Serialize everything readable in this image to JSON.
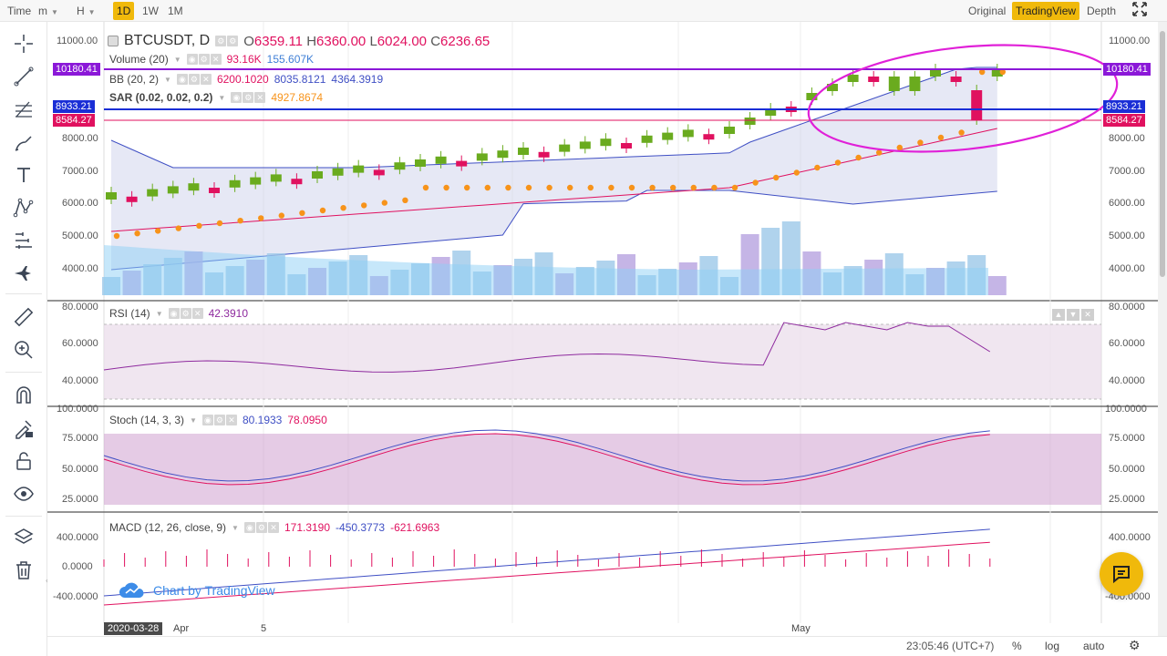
{
  "topbar": {
    "time_label": "Time",
    "interval_m": "m",
    "interval_h": "H",
    "intervals": [
      "1D",
      "1W",
      "1M"
    ],
    "active_interval": "1D",
    "views": [
      "Original",
      "TradingView",
      "Depth"
    ],
    "active_view": "TradingView"
  },
  "symbol": {
    "name": "BTCUSDT, D",
    "open_label": "O",
    "open": "6359.11",
    "high_label": "H",
    "high": "6360.00",
    "low_label": "L",
    "low": "6024.00",
    "close_label": "C",
    "close": "6236.65"
  },
  "indicators": {
    "volume": {
      "name": "Volume (20)",
      "v1": "93.16K",
      "v2": "155.607K"
    },
    "bb": {
      "name": "BB (20, 2)",
      "v1": "6200.1020",
      "v2": "8035.8121",
      "v3": "4364.3919"
    },
    "sar": {
      "name": "SAR (0.02, 0.02, 0.2)",
      "v1": "4927.8674"
    },
    "rsi": {
      "name": "RSI (14)",
      "v1": "42.3910"
    },
    "stoch": {
      "name": "Stoch (14, 3, 3)",
      "v1": "80.1933",
      "v2": "78.0950"
    },
    "macd": {
      "name": "MACD (12, 26, close, 9)",
      "v1": "171.3190",
      "v2": "-450.3773",
      "v3": "-621.6963"
    }
  },
  "price_tags": {
    "purple": "10180.41",
    "blue": "8933.21",
    "pink": "8584.27"
  },
  "main_axis": [
    "11000.00",
    "8000.00",
    "7000.00",
    "6000.00",
    "5000.00",
    "4000.00"
  ],
  "rsi_axis": [
    "80.0000",
    "60.0000",
    "40.0000"
  ],
  "stoch_axis": [
    "100.0000",
    "75.0000",
    "50.0000",
    "25.0000"
  ],
  "macd_axis": [
    "400.0000",
    "0.0000",
    "-400.0000"
  ],
  "x_labels": {
    "date_box": "2020-03-28",
    "apr": "Apr",
    "five": "5",
    "may": "May"
  },
  "watermark": "Chart by TradingView",
  "bottombar": {
    "time": "23:05:46 (UTC+7)",
    "percent": "%",
    "log": "log",
    "auto": "auto"
  },
  "colors": {
    "up": "#6aab1e",
    "down": "#e0115f",
    "sar": "#f7931a",
    "bb": "#3f4fc4",
    "purple_line": "#8b18d8",
    "blue_line": "#1a2ed6",
    "pink_line": "#e0115f",
    "ellipse": "#e020d8"
  }
}
